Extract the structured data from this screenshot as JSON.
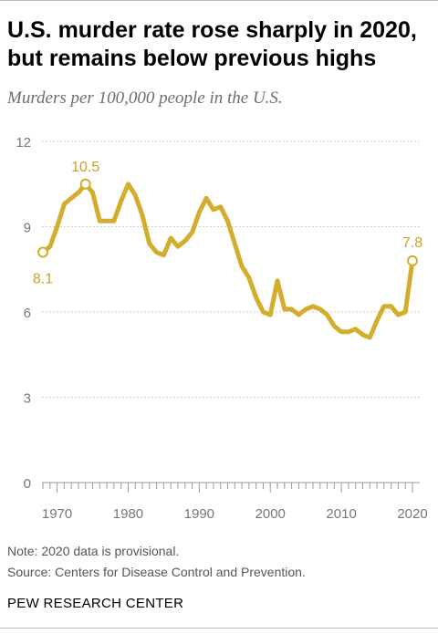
{
  "title": "U.S. murder rate rose sharply in 2020, but remains below previous highs",
  "subtitle": "Murders per 100,000 people in the U.S.",
  "note": "Note: 2020 data is provisional.",
  "source": "Source: Centers for Disease Control and Prevention.",
  "brand": "PEW RESEARCH CENTER",
  "colors": {
    "line": "#d3ad2c",
    "grid": "#bdbdbd",
    "tick_text": "#777777",
    "label": "#c9a227"
  },
  "chart_data": {
    "type": "line",
    "title": "U.S. murder rate rose sharply in 2020, but remains below previous highs",
    "subtitle": "Murders per 100,000 people in the U.S.",
    "xlabel": "",
    "ylabel": "",
    "xlim": [
      1968,
      2020
    ],
    "ylim": [
      0,
      12
    ],
    "yticks": [
      0,
      3,
      6,
      9,
      12
    ],
    "ytick_labels": [
      "0",
      "3",
      "6",
      "9",
      "12"
    ],
    "xticks": [
      1970,
      1980,
      1990,
      2000,
      2010,
      2020
    ],
    "xtick_labels": [
      "1970",
      "1980",
      "1990",
      "2000",
      "2010",
      "2020"
    ],
    "grid": true,
    "legend": "none",
    "series": [
      {
        "x": [
          1968,
          1969,
          1970,
          1971,
          1972,
          1973,
          1974,
          1975,
          1976,
          1977,
          1978,
          1979,
          1980,
          1981,
          1982,
          1983,
          1984,
          1985,
          1986,
          1987,
          1988,
          1989,
          1990,
          1991,
          1992,
          1993,
          1994,
          1995,
          1996,
          1997,
          1998,
          1999,
          2000,
          2001,
          2002,
          2003,
          2004,
          2005,
          2006,
          2007,
          2008,
          2009,
          2010,
          2011,
          2012,
          2013,
          2014,
          2015,
          2016,
          2017,
          2018,
          2019,
          2020
        ],
        "y": [
          8.1,
          8.3,
          9.0,
          9.8,
          10.0,
          10.2,
          10.5,
          10.2,
          9.2,
          9.2,
          9.2,
          9.9,
          10.5,
          10.1,
          9.4,
          8.4,
          8.1,
          8.0,
          8.6,
          8.3,
          8.5,
          8.8,
          9.5,
          10.0,
          9.6,
          9.7,
          9.2,
          8.4,
          7.6,
          7.2,
          6.5,
          6.0,
          5.9,
          7.1,
          6.1,
          6.1,
          5.9,
          6.1,
          6.2,
          6.1,
          5.9,
          5.5,
          5.3,
          5.3,
          5.4,
          5.2,
          5.1,
          5.7,
          6.2,
          6.2,
          5.9,
          6.0,
          7.8
        ]
      }
    ],
    "annotations": [
      {
        "x": 1968,
        "y": 8.1,
        "text": "8.1"
      },
      {
        "x": 1974,
        "y": 10.5,
        "text": "10.5"
      },
      {
        "x": 2020,
        "y": 7.8,
        "text": "7.8"
      }
    ]
  }
}
